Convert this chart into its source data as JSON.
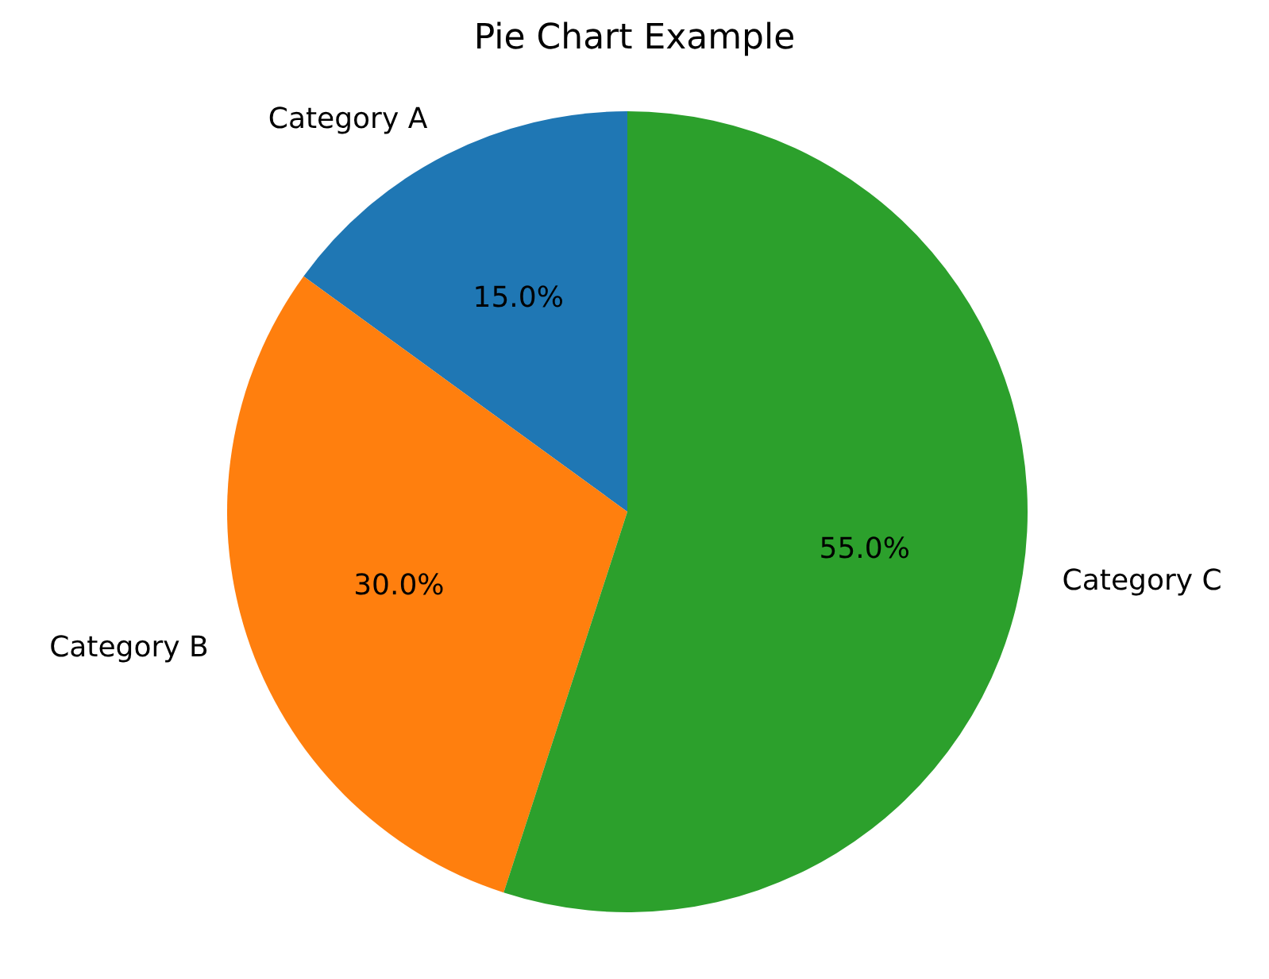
{
  "chart_data": {
    "type": "pie",
    "title": "Pie Chart Example",
    "categories": [
      "Category A",
      "Category B",
      "Category C"
    ],
    "values": [
      15,
      30,
      55
    ],
    "colors": [
      "#1f77b4",
      "#ff7f0e",
      "#2ca02c"
    ],
    "value_labels": [
      "15.0%",
      "30.0%",
      "55.0%"
    ],
    "legend": false
  }
}
